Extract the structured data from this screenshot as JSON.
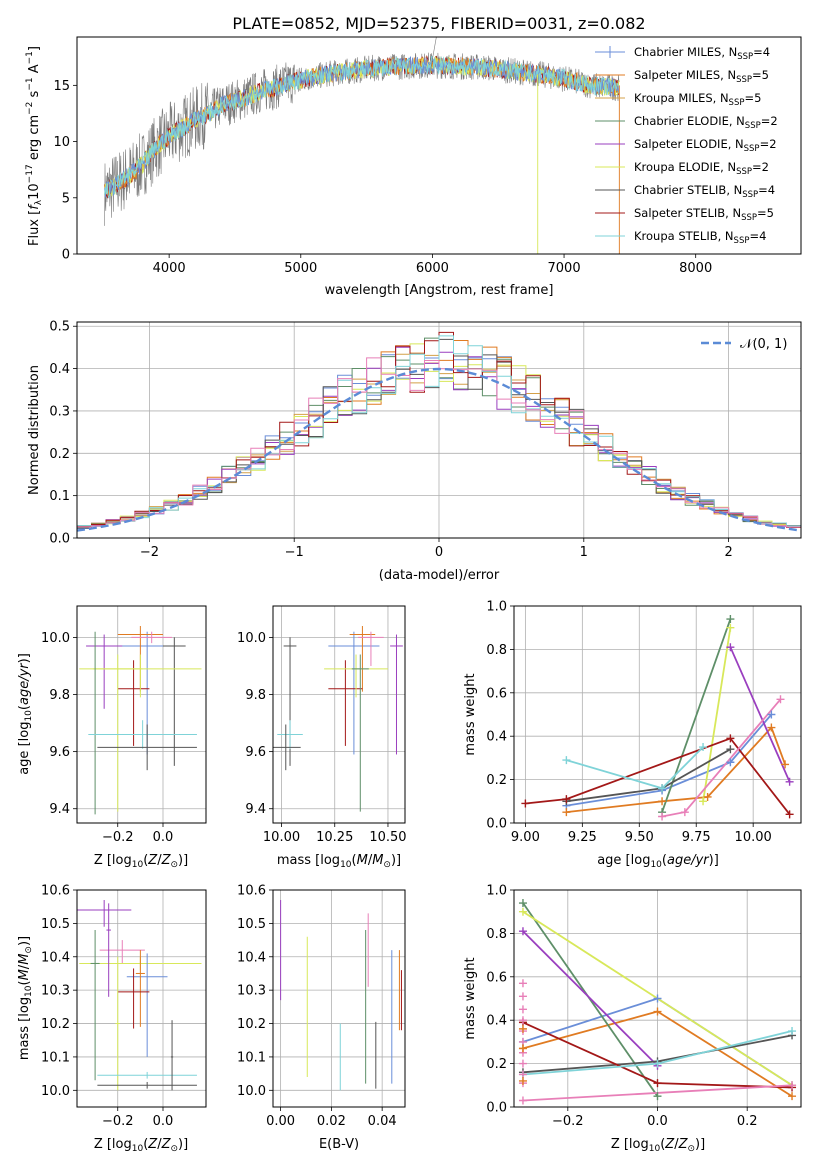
{
  "figure": {
    "title": "PLATE=0852, MJD=52375, FIBERID=0031, z=0.082"
  },
  "colors": {
    "chabrier_miles": "#6a8ed8",
    "salpeter_miles": "#e07b22",
    "kroupa_miles": "#d4a048",
    "chabrier_elodie": "#5e8f68",
    "salpeter_elodie": "#9a3fbf",
    "kroupa_elodie": "#d8e85a",
    "chabrier_stelib": "#555555",
    "salpeter_stelib": "#a31818",
    "kroupa_stelib": "#7fd3d8",
    "pink": "#e87fb8",
    "data": "#7a7a7a",
    "gauss": "#5b8bd6",
    "grid": "#b0b0b0"
  },
  "chart_data": [
    {
      "id": "spectrum",
      "type": "line",
      "title": "PLATE=0852, MJD=52375, FIBERID=0031, z=0.082",
      "xlabel": "wavelength [Angstrom, rest frame]",
      "ylabel": "Flux [fλ10⁻¹⁷ erg cm⁻² s⁻¹ A⁻¹]",
      "xlim": [
        3300,
        8800
      ],
      "ylim": [
        0,
        19.3
      ],
      "xticks": [
        "4000",
        "5000",
        "6000",
        "7000",
        "8000"
      ],
      "yticks": [
        "0",
        "5",
        "10",
        "15"
      ],
      "legend": "top-right",
      "grid": false,
      "continuum": {
        "x": [
          3510,
          3600,
          3700,
          3800,
          3900,
          4000,
          4100,
          4200,
          4300,
          4400,
          4500,
          4600,
          4700,
          4800,
          4900,
          5000,
          5200,
          5400,
          5600,
          5800,
          6000,
          6200,
          6400,
          6600,
          6800,
          7000,
          7200,
          7400
        ],
        "y": [
          5.5,
          6.2,
          7.0,
          8.0,
          9.5,
          10.5,
          11.2,
          12.0,
          12.5,
          13.2,
          13.6,
          14.0,
          14.5,
          14.8,
          15.2,
          15.5,
          16.0,
          16.3,
          16.6,
          16.7,
          16.8,
          16.7,
          16.6,
          16.3,
          16.0,
          15.6,
          15.0,
          14.8
        ]
      },
      "series": [
        {
          "name": "Chabrier MILES, N<sub>SSP</sub>=4"
        },
        {
          "name": "Salpeter MILES, N<sub>SSP</sub>=5"
        },
        {
          "name": "Kroupa MILES, N<sub>SSP</sub>=5"
        },
        {
          "name": "Chabrier ELODIE, N<sub>SSP</sub>=2"
        },
        {
          "name": "Salpeter ELODIE, N<sub>SSP</sub>=2"
        },
        {
          "name": "Kroupa ELODIE, N<sub>SSP</sub>=2"
        },
        {
          "name": "Chabrier STELIB, N<sub>SSP</sub>=4"
        },
        {
          "name": "Salpeter STELIB, N<sub>SSP</sub>=5"
        },
        {
          "name": "Kroupa STELIB, N<sub>SSP</sub>=4"
        }
      ],
      "legend_labels": [
        "Chabrier MILES, N",
        "Salpeter MILES, N",
        "Kroupa MILES, N",
        "Chabrier ELODIE, N",
        "Salpeter ELODIE, N",
        "Kroupa ELODIE, N",
        "Chabrier STELIB, N",
        "Salpeter STELIB, N",
        "Kroupa STELIB, N"
      ],
      "legend_suffix": [
        "=4",
        "=5",
        "=5",
        "=2",
        "=2",
        "=2",
        "=4",
        "=5",
        "=4"
      ],
      "legend_sub": "SSP"
    },
    {
      "id": "residuals",
      "type": "bar",
      "xlabel": "(data-model)/error",
      "ylabel": "Normed distribution",
      "xlim": [
        -2.5,
        2.5
      ],
      "ylim": [
        0,
        0.51
      ],
      "xticks": [
        "−2",
        "−1",
        "0",
        "1",
        "2"
      ],
      "yticks": [
        "0.0",
        "0.1",
        "0.2",
        "0.3",
        "0.4",
        "0.5"
      ],
      "grid": true,
      "legend": "top-right",
      "gauss_label": "𝒩(0, 1)",
      "bin_width": 0.1
    },
    {
      "id": "age_vs_Z",
      "type": "scatter",
      "xlabel": "Z [log10(Z/Z⊙)]",
      "ylabel": "age  [log10(age/yr)]",
      "xlim": [
        -0.38,
        0.19
      ],
      "ylim": [
        9.35,
        10.11
      ],
      "xticks": [
        "−0.2",
        "0.0"
      ],
      "yticks": [
        "9.4",
        "9.6",
        "9.8",
        "10.0"
      ],
      "points": [
        {
          "x": -0.07,
          "y": 9.97,
          "xerr": 0.12,
          "yerr": [
            0.38,
            0.05
          ],
          "c": "chabrier_miles"
        },
        {
          "x": -0.1,
          "y": 10.01,
          "xerr": 0.1,
          "yerr": [
            0.2,
            0.03
          ],
          "c": "salpeter_miles"
        },
        {
          "x": -0.13,
          "y": 9.82,
          "xerr": 0.07,
          "yerr": [
            0.2,
            0.1
          ],
          "c": "salpeter_stelib"
        },
        {
          "x": -0.26,
          "y": 9.97,
          "xerr": 0.08,
          "yerr": [
            0.22,
            0.04
          ],
          "c": "salpeter_elodie"
        },
        {
          "x": 0.05,
          "y": 9.97,
          "xerr": 0.05,
          "yerr": [
            0.42,
            0.03
          ],
          "c": "chabrier_stelib"
        },
        {
          "x": -0.1,
          "y": 9.89,
          "xerr": 0.27,
          "yerr": [
            0.1,
            0.05
          ],
          "c": "kroupa_elodie"
        },
        {
          "x": -0.2,
          "y": 9.89,
          "xerr": 0.11,
          "yerr": [
            0.5,
            0.05
          ],
          "c": "kroupa_elodie"
        },
        {
          "x": -0.3,
          "y": 9.66,
          "xerr": 0.02,
          "yerr": [
            0.28,
            0.36
          ],
          "c": "chabrier_elodie"
        },
        {
          "x": -0.09,
          "y": 9.66,
          "xerr": 0.24,
          "yerr": [
            0.05,
            0.05
          ],
          "c": "kroupa_stelib"
        },
        {
          "x": -0.07,
          "y": 9.615,
          "xerr": 0.22,
          "yerr": [
            0.08,
            0.08
          ],
          "c": "chabrier_stelib"
        },
        {
          "x": -0.05,
          "y": 10.0,
          "xerr": 0.09,
          "yerr": [
            0.02,
            0.02
          ],
          "c": "pink"
        }
      ]
    },
    {
      "id": "age_vs_mass",
      "type": "scatter",
      "xlabel": "mass [log10(M/M⊙)]",
      "ylabel": "",
      "xlim": [
        9.96,
        10.58
      ],
      "ylim": [
        9.35,
        10.11
      ],
      "xticks": [
        "10.00",
        "10.25",
        "10.50"
      ],
      "yticks": [
        "9.4",
        "9.6",
        "9.8",
        "10.0"
      ],
      "points": [
        {
          "x": 10.34,
          "y": 9.97,
          "xerr": 0.12,
          "yerr": [
            0.38,
            0.05
          ],
          "c": "chabrier_miles"
        },
        {
          "x": 10.38,
          "y": 10.01,
          "xerr": 0.06,
          "yerr": [
            0.2,
            0.03
          ],
          "c": "salpeter_miles"
        },
        {
          "x": 10.3,
          "y": 9.82,
          "xerr": 0.08,
          "yerr": [
            0.2,
            0.1
          ],
          "c": "salpeter_stelib"
        },
        {
          "x": 10.54,
          "y": 9.97,
          "xerr": 0.03,
          "yerr": [
            0.38,
            0.04
          ],
          "c": "salpeter_elodie"
        },
        {
          "x": 10.04,
          "y": 9.97,
          "xerr": 0.03,
          "yerr": [
            0.42,
            0.03
          ],
          "c": "chabrier_stelib"
        },
        {
          "x": 10.35,
          "y": 9.89,
          "xerr": 0.15,
          "yerr": [
            0.1,
            0.05
          ],
          "c": "kroupa_elodie"
        },
        {
          "x": 10.37,
          "y": 9.89,
          "xerr": 0.04,
          "yerr": [
            0.5,
            0.05
          ],
          "c": "chabrier_elodie"
        },
        {
          "x": 10.04,
          "y": 9.66,
          "xerr": 0.06,
          "yerr": [
            0.05,
            0.05
          ],
          "c": "kroupa_stelib"
        },
        {
          "x": 10.02,
          "y": 9.615,
          "xerr": 0.07,
          "yerr": [
            0.08,
            0.08
          ],
          "c": "chabrier_stelib"
        },
        {
          "x": 10.42,
          "y": 10.0,
          "xerr": 0.06,
          "yerr": [
            0.1,
            0.02
          ],
          "c": "pink"
        }
      ]
    },
    {
      "id": "weight_vs_age",
      "type": "line",
      "xlabel": "age  [log10(age/yr)]",
      "ylabel": "mass weight",
      "xlim": [
        8.95,
        10.21
      ],
      "ylim": [
        0,
        1
      ],
      "xticks": [
        "9.00",
        "9.25",
        "9.50",
        "9.75",
        "10.00"
      ],
      "yticks": [
        "0.0",
        "0.2",
        "0.4",
        "0.6",
        "0.8",
        "1.0"
      ],
      "grid": true,
      "series": [
        {
          "c": "chabrier_miles",
          "x": [
            9.18,
            9.6,
            9.9,
            10.08
          ],
          "y": [
            0.08,
            0.15,
            0.28,
            0.5
          ]
        },
        {
          "c": "salpeter_miles",
          "x": [
            9.18,
            9.6,
            9.8,
            10.08,
            10.14
          ],
          "y": [
            0.05,
            0.1,
            0.12,
            0.44,
            0.27
          ]
        },
        {
          "c": "chabrier_elodie",
          "x": [
            9.6,
            9.9
          ],
          "y": [
            0.05,
            0.94
          ]
        },
        {
          "c": "salpeter_elodie",
          "x": [
            9.9,
            10.16
          ],
          "y": [
            0.81,
            0.19
          ]
        },
        {
          "c": "kroupa_elodie",
          "x": [
            9.78,
            9.9
          ],
          "y": [
            0.1,
            0.9
          ]
        },
        {
          "c": "chabrier_stelib",
          "x": [
            9.18,
            9.6,
            9.9
          ],
          "y": [
            0.1,
            0.16,
            0.34
          ]
        },
        {
          "c": "salpeter_stelib",
          "x": [
            9.0,
            9.18,
            9.9,
            10.16
          ],
          "y": [
            0.09,
            0.11,
            0.39,
            0.04
          ]
        },
        {
          "c": "kroupa_stelib",
          "x": [
            9.18,
            9.6,
            9.78
          ],
          "y": [
            0.29,
            0.16,
            0.35
          ]
        },
        {
          "c": "pink",
          "x": [
            9.6,
            9.7,
            10.12
          ],
          "y": [
            0.03,
            0.05,
            0.57
          ]
        }
      ]
    },
    {
      "id": "mass_vs_Z",
      "type": "scatter",
      "xlabel": "Z [log10(Z/Z⊙)]",
      "ylabel": "mass [log10(M/M⊙)]",
      "xlim": [
        -0.38,
        0.19
      ],
      "ylim": [
        9.95,
        10.6
      ],
      "xticks": [
        "−0.2",
        "0.0"
      ],
      "yticks": [
        "10.0",
        "10.1",
        "10.2",
        "10.3",
        "10.4",
        "10.5",
        "10.6"
      ],
      "points": [
        {
          "x": -0.26,
          "y": 10.54,
          "xerr": 0.12,
          "yerr": [
            0.05,
            0.03
          ],
          "c": "salpeter_elodie"
        },
        {
          "x": -0.18,
          "y": 10.42,
          "xerr": 0.1,
          "yerr": [
            0.04,
            0.03
          ],
          "c": "pink"
        },
        {
          "x": -0.1,
          "y": 10.38,
          "xerr": 0.27,
          "yerr": [
            0.02,
            0.02
          ],
          "c": "kroupa_elodie"
        },
        {
          "x": -0.07,
          "y": 10.34,
          "xerr": 0.09,
          "yerr": [
            0.24,
            0.07
          ],
          "c": "chabrier_miles"
        },
        {
          "x": -0.1,
          "y": 10.35,
          "xerr": 0.02,
          "yerr": [
            0.16,
            0.07
          ],
          "c": "salpeter_miles"
        },
        {
          "x": -0.13,
          "y": 10.295,
          "xerr": 0.07,
          "yerr": [
            0.11,
            0.07
          ],
          "c": "salpeter_stelib"
        },
        {
          "x": -0.24,
          "y": 10.48,
          "xerr": 0.01,
          "yerr": [
            0.2,
            0.08
          ],
          "c": "salpeter_elodie"
        },
        {
          "x": -0.3,
          "y": 10.38,
          "xerr": 0.02,
          "yerr": [
            0.35,
            0.1
          ],
          "c": "chabrier_elodie"
        },
        {
          "x": -0.2,
          "y": 10.2,
          "xerr": 0.01,
          "yerr": [
            0.2,
            0.2
          ],
          "c": "kroupa_elodie"
        },
        {
          "x": -0.07,
          "y": 10.045,
          "xerr": 0.22,
          "yerr": [
            0.01,
            0.01
          ],
          "c": "kroupa_stelib"
        },
        {
          "x": -0.07,
          "y": 10.015,
          "xerr": 0.22,
          "yerr": [
            0.01,
            0.01
          ],
          "c": "chabrier_stelib"
        },
        {
          "x": 0.04,
          "y": 10.1,
          "xerr": 0.005,
          "yerr": [
            0.1,
            0.11
          ],
          "c": "chabrier_stelib"
        }
      ]
    },
    {
      "id": "mass_vs_ebv",
      "type": "scatter",
      "xlabel": "E(B-V)",
      "ylabel": "",
      "xlim": [
        -0.003,
        0.049
      ],
      "ylim": [
        9.95,
        10.6
      ],
      "xticks": [
        "0.00",
        "0.02",
        "0.04"
      ],
      "yticks": [
        "10.0",
        "10.1",
        "10.2",
        "10.3",
        "10.4",
        "10.5",
        "10.6"
      ],
      "points": [
        {
          "x": 0.0,
          "y": 10.42,
          "yerr": [
            0.15,
            0.15
          ],
          "c": "salpeter_elodie"
        },
        {
          "x": 0.0105,
          "y": 10.25,
          "yerr": [
            0.21,
            0.21
          ],
          "c": "kroupa_elodie"
        },
        {
          "x": 0.0235,
          "y": 10.1,
          "yerr": [
            0.1,
            0.1
          ],
          "c": "kroupa_stelib"
        },
        {
          "x": 0.0335,
          "y": 10.25,
          "yerr": [
            0.23,
            0.23
          ],
          "c": "chabrier_elodie"
        },
        {
          "x": 0.0345,
          "y": 10.42,
          "yerr": [
            0.11,
            0.11
          ],
          "c": "pink"
        },
        {
          "x": 0.0375,
          "y": 10.105,
          "yerr": [
            0.1,
            0.1
          ],
          "c": "chabrier_stelib"
        },
        {
          "x": 0.0438,
          "y": 10.22,
          "yerr": [
            0.2,
            0.2
          ],
          "c": "chabrier_miles"
        },
        {
          "x": 0.0468,
          "y": 10.3,
          "yerr": [
            0.12,
            0.12
          ],
          "c": "salpeter_miles"
        },
        {
          "x": 0.0476,
          "y": 10.27,
          "yerr": [
            0.09,
            0.09
          ],
          "c": "salpeter_stelib"
        }
      ]
    },
    {
      "id": "weight_vs_Z",
      "type": "line",
      "xlabel": "Z [log10(Z/Z⊙)]",
      "ylabel": "mass weight",
      "xlim": [
        -0.32,
        0.32
      ],
      "ylim": [
        0,
        1
      ],
      "xticks": [
        "−0.2",
        "0.0",
        "0.2"
      ],
      "yticks": [
        "0.0",
        "0.2",
        "0.4",
        "0.6",
        "0.8",
        "1.0"
      ],
      "grid": true,
      "series": [
        {
          "c": "chabrier_miles",
          "x": [
            -0.3,
            0.0,
            0.3
          ],
          "y": [
            0.3,
            0.5,
            0.1
          ]
        },
        {
          "c": "salpeter_miles",
          "x": [
            -0.3,
            0.0,
            0.3
          ],
          "y": [
            0.27,
            0.44,
            0.05
          ]
        },
        {
          "c": "chabrier_elodie",
          "x": [
            -0.3,
            0.0
          ],
          "y": [
            0.94,
            0.05
          ]
        },
        {
          "c": "salpeter_elodie",
          "x": [
            -0.3,
            0.0
          ],
          "y": [
            0.81,
            0.19
          ]
        },
        {
          "c": "kroupa_elodie",
          "x": [
            -0.3,
            0.3
          ],
          "y": [
            0.9,
            0.1
          ]
        },
        {
          "c": "chabrier_stelib",
          "x": [
            -0.3,
            0.0,
            0.3
          ],
          "y": [
            0.16,
            0.21,
            0.33
          ]
        },
        {
          "c": "salpeter_stelib",
          "x": [
            -0.3,
            0.0,
            0.3
          ],
          "y": [
            0.39,
            0.11,
            0.09
          ]
        },
        {
          "c": "kroupa_stelib",
          "x": [
            -0.3,
            0.0,
            0.3
          ],
          "y": [
            0.15,
            0.2,
            0.35
          ]
        },
        {
          "c": "pink",
          "x": [
            -0.3,
            0.3
          ],
          "y": [
            0.03,
            0.1
          ]
        }
      ],
      "stacked_points": [
        {
          "x": -0.3,
          "y": [
            0.57,
            0.51,
            0.45,
            0.4,
            0.35,
            0.3,
            0.25,
            0.2,
            0.15,
            0.11
          ],
          "c": "pink"
        },
        {
          "x": -0.3,
          "y": [
            0.36,
            0.27,
            0.12
          ],
          "c": "salpeter_miles"
        }
      ]
    }
  ]
}
